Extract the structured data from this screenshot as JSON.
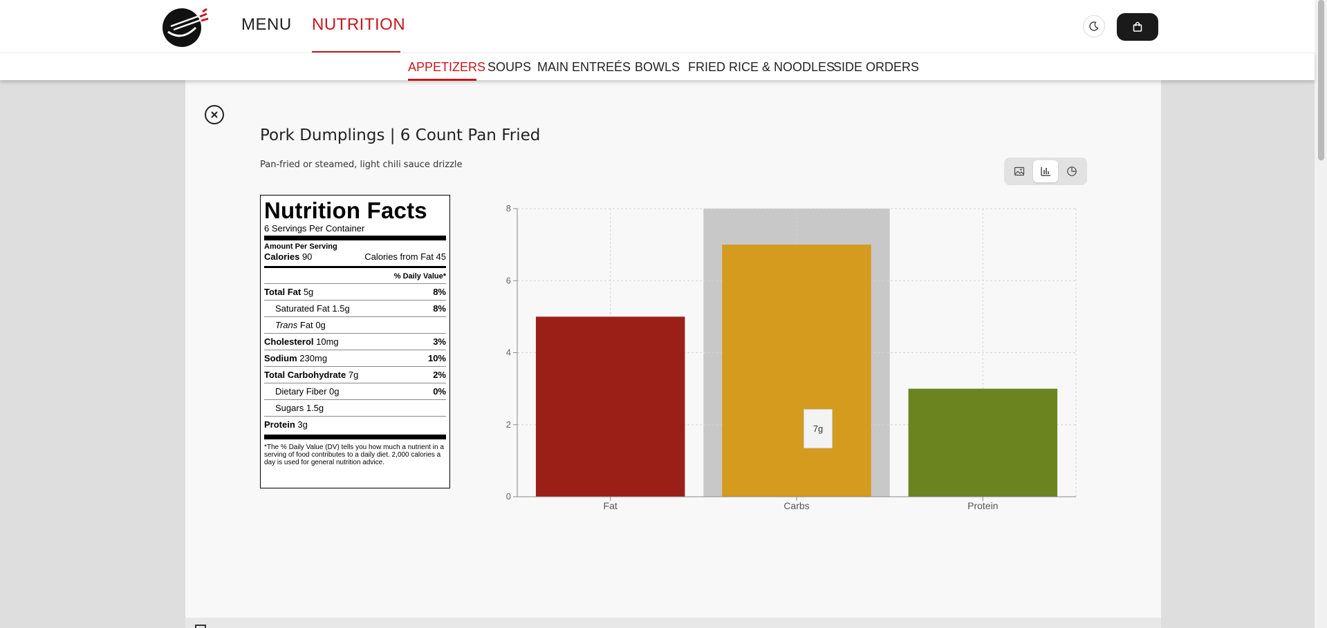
{
  "header": {
    "nav": [
      {
        "label": "MENU",
        "active": false
      },
      {
        "label": "NUTRITION",
        "active": true
      }
    ],
    "brand_color": "#c8161d"
  },
  "categories": [
    {
      "label": "APPETIZERS",
      "active": true
    },
    {
      "label": "SOUPS",
      "active": false
    },
    {
      "label": "MAIN ENTREÉS",
      "active": false
    },
    {
      "label": "BOWLS",
      "active": false
    },
    {
      "label": "FRIED RICE & NOODLES",
      "active": false
    },
    {
      "label": "SIDE ORDERS",
      "active": false
    }
  ],
  "item": {
    "title": "Pork Dumplings | 6 Count Pan Fried",
    "description": "Pan-fried or steamed, light chili sauce drizzle"
  },
  "view_toggle": {
    "options": [
      "image-icon",
      "bar-chart-icon",
      "pie-chart-icon"
    ],
    "active": "bar-chart-icon"
  },
  "nutrition_facts": {
    "title": "Nutrition Facts",
    "servings": "6 Servings Per Container",
    "amount_per_serving": "Amount Per Serving",
    "calories_label": "Calories",
    "calories_value": "90",
    "calories_from_fat": "Calories from Fat 45",
    "daily_value_header": "% Daily Value*",
    "rows": {
      "total_fat": {
        "label": "Total Fat",
        "amount": "5g",
        "dv": "8%"
      },
      "sat_fat": {
        "label": "Saturated Fat",
        "amount": "1.5g",
        "dv": "8%"
      },
      "trans_fat": {
        "label_italic": "Trans",
        "label": "Fat",
        "amount": "0g"
      },
      "cholesterol": {
        "label": "Cholesterol",
        "amount": "10mg",
        "dv": "3%"
      },
      "sodium": {
        "label": "Sodium",
        "amount": "230mg",
        "dv": "10%"
      },
      "total_carb": {
        "label": "Total Carbohydrate",
        "amount": "7g",
        "dv": "2%"
      },
      "fiber": {
        "label": "Dietary Fiber",
        "amount": "0g",
        "dv": "0%"
      },
      "sugars": {
        "label": "Sugars",
        "amount": "1.5g"
      },
      "protein": {
        "label": "Protein",
        "amount": "3g"
      }
    },
    "footnote": "*The % Daily Value (DV) tells you how much a nutrient in a serving of food contributes to a daily diet. 2,000 calories a day is used for general nutrition advice."
  },
  "chart_data": {
    "type": "bar",
    "categories": [
      "Fat",
      "Carbs",
      "Protein"
    ],
    "values": [
      5,
      7,
      3
    ],
    "colors": [
      "#9b1f17",
      "#d49b1e",
      "#6b8420"
    ],
    "title": "",
    "xlabel": "",
    "ylabel": "",
    "ylim": [
      0,
      8
    ],
    "yticks": [
      "0",
      "2",
      "4",
      "6",
      "8"
    ],
    "grid": true,
    "hover_category": "Carbs",
    "tooltip": "7g"
  }
}
